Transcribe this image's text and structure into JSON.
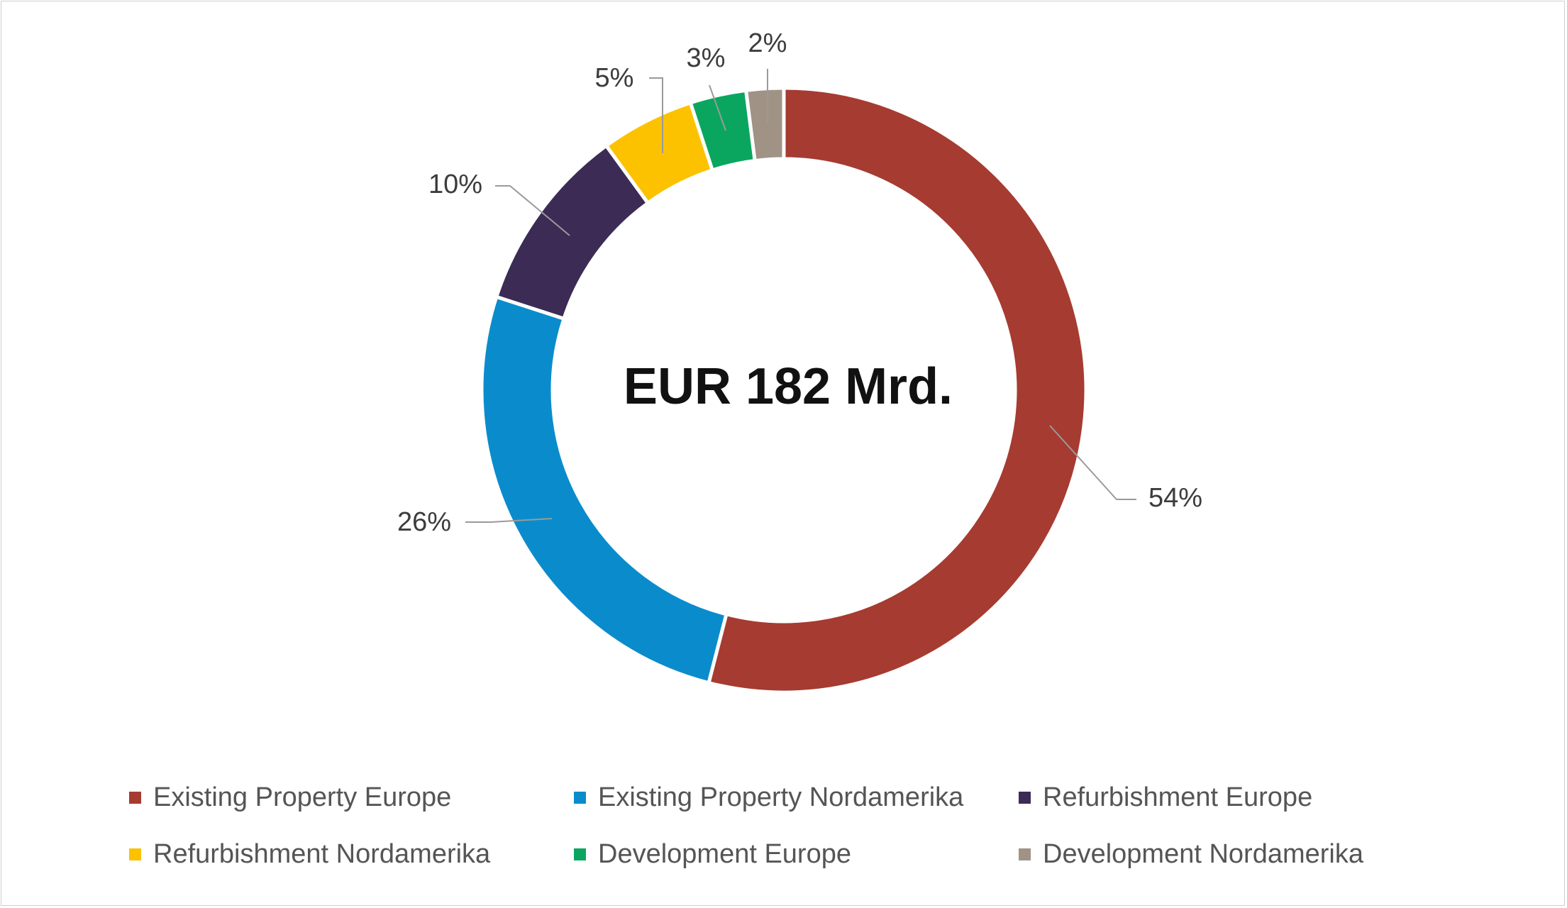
{
  "chart_data": {
    "type": "pie",
    "style": "donut",
    "center_label": "EUR 182 Mrd.",
    "categories": [
      "Existing Property Europe",
      "Existing Property Nordamerika",
      "Refurbishment Europe",
      "Refurbishment Nordamerika",
      "Development Europe",
      "Development Nordamerika"
    ],
    "values": [
      54,
      26,
      10,
      5,
      3,
      2
    ],
    "value_labels": [
      "54%",
      "26%",
      "10%",
      "5%",
      "3%",
      "2%"
    ],
    "colors": [
      "#a63b31",
      "#0a8ccc",
      "#3b2b55",
      "#fcc200",
      "#0aa660",
      "#a09386"
    ],
    "start_angle": "12 o'clock",
    "direction": "clockwise",
    "legend": {
      "placement": "bottom",
      "columns": 3
    }
  }
}
